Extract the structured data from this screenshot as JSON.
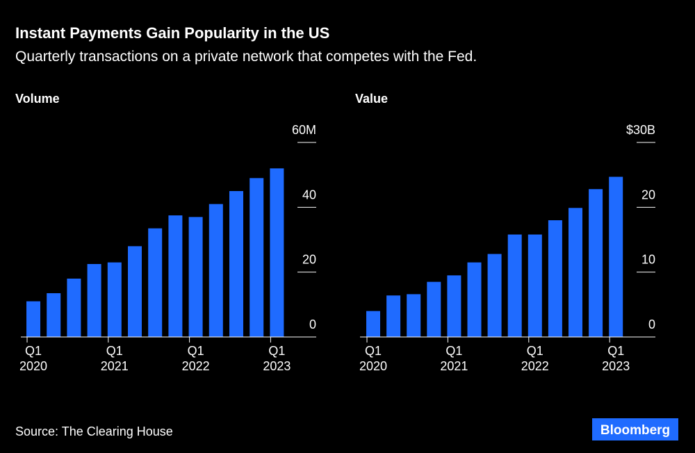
{
  "title": "Instant Payments Gain Popularity in the US",
  "subtitle": "Quarterly transactions on a private network that competes with the Fed.",
  "source": "Source: The Clearing House",
  "brand": "Bloomberg",
  "chart_data": [
    {
      "type": "bar",
      "title": "Volume",
      "categories": [
        "Q1 2020",
        null,
        null,
        null,
        "Q1 2021",
        null,
        null,
        null,
        "Q1 2022",
        null,
        null,
        null,
        "Q1 2023"
      ],
      "values": [
        11,
        13.5,
        18,
        22.5,
        23,
        28,
        33.5,
        37.5,
        37,
        41,
        45,
        49,
        52
      ],
      "color": "#1f6bff",
      "ylim": [
        0,
        60
      ],
      "yticks": [
        0,
        20,
        40,
        {
          "value": 60,
          "label": "60M"
        }
      ]
    },
    {
      "type": "bar",
      "title": "Value",
      "categories": [
        "Q1 2020",
        null,
        null,
        null,
        "Q1 2021",
        null,
        null,
        null,
        "Q1 2022",
        null,
        null,
        null,
        "Q1 2023"
      ],
      "values": [
        4,
        6.4,
        6.6,
        8.5,
        9.5,
        11.5,
        12.8,
        15.8,
        15.8,
        18,
        19.9,
        22.8,
        24.7
      ],
      "color": "#1f6bff",
      "ylim": [
        0,
        30
      ],
      "yticks": [
        0,
        10,
        20,
        {
          "value": 30,
          "label": "$30B"
        }
      ]
    }
  ]
}
